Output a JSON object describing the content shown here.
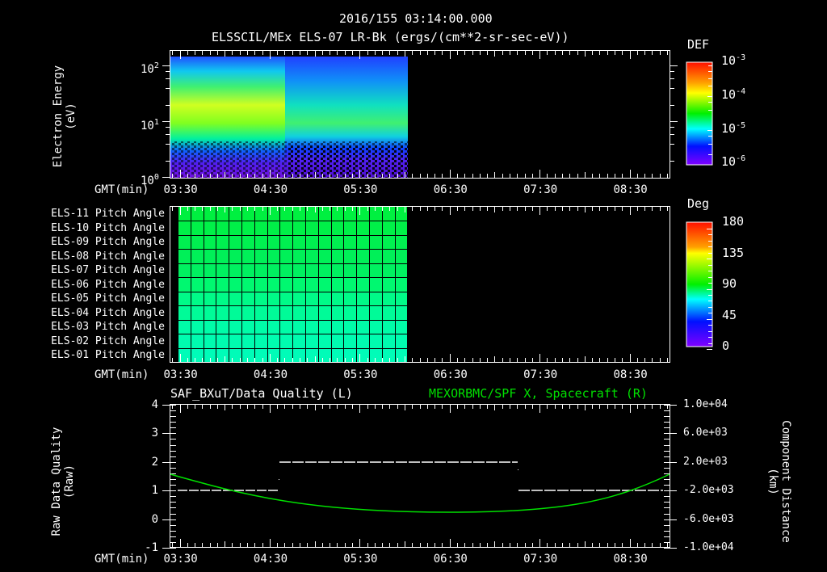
{
  "header": {
    "timestamp": "2016/155 03:14:00.000",
    "subtitle": "ELSSCIL/MEx ELS-07 LR-Bk  (ergs/(cm**2-sr-sec-eV))"
  },
  "time_axis": {
    "label": "GMT(min)",
    "ticks": [
      "03:30",
      "04:30",
      "05:30",
      "06:30",
      "07:30",
      "08:30"
    ]
  },
  "panel1": {
    "ylabel_line1": "Electron Energy",
    "ylabel_line2": "(eV)",
    "yticks": [
      {
        "base": "10",
        "exp": "2"
      },
      {
        "base": "10",
        "exp": "1"
      },
      {
        "base": "10",
        "exp": "0"
      }
    ],
    "colorbar": {
      "title": "DEF",
      "ticks": [
        {
          "base": "10",
          "exp": "-3"
        },
        {
          "base": "10",
          "exp": "-4"
        },
        {
          "base": "10",
          "exp": "-5"
        },
        {
          "base": "10",
          "exp": "-6"
        }
      ]
    }
  },
  "panel2": {
    "rows": [
      "ELS-11 Pitch Angle",
      "ELS-10 Pitch Angle",
      "ELS-09 Pitch Angle",
      "ELS-08 Pitch Angle",
      "ELS-07 Pitch Angle",
      "ELS-06 Pitch Angle",
      "ELS-05 Pitch Angle",
      "ELS-04 Pitch Angle",
      "ELS-03 Pitch Angle",
      "ELS-02 Pitch Angle",
      "ELS-01 Pitch Angle"
    ],
    "colorbar": {
      "title": "Deg",
      "ticks": [
        "180",
        "135",
        "90",
        "45",
        "0"
      ]
    }
  },
  "panel3": {
    "left_title": "SAF_BXuT/Data Quality (L)",
    "right_title": "MEXORBMC/SPF X, Spacecraft (R)",
    "ylabel_left_line1": "Raw Data Quality",
    "ylabel_left_line2": "(Raw)",
    "ylabel_right_line1": "Component Distance",
    "ylabel_right_line2": "(km)",
    "yticks_left": [
      "4",
      "3",
      "2",
      "1",
      "0",
      "-1"
    ],
    "yticks_right": [
      "1.0e+04",
      "6.0e+03",
      "2.0e+03",
      "-2.0e+03",
      "-6.0e+03",
      "-1.0e+04"
    ]
  },
  "colors": {
    "background": "#000000",
    "axis": "#ffffff",
    "spf_line": "#00e000",
    "quality_line": "#ffffff"
  },
  "chart_data": [
    {
      "type": "heatmap",
      "title": "ELSSCIL/MEx ELS-07 LR-Bk (ergs/(cm**2-sr-sec-eV))",
      "xlabel": "GMT(min)",
      "ylabel": "Electron Energy (eV)",
      "x_ticks": [
        "03:30",
        "04:30",
        "05:30",
        "06:30",
        "07:30",
        "08:30"
      ],
      "y_scale": "log",
      "ylim": [
        1,
        150
      ],
      "data_extent_x": [
        "03:14",
        "~06:00"
      ],
      "colorbar": {
        "label": "DEF",
        "scale": "log",
        "range": [
          1e-06,
          0.001
        ]
      },
      "description": "Strong band ~20-60 eV (green-yellow, ~1e-4) from 03:14 to ~04:50, weaker patchy band ~15-60 eV (cyan-green) 04:50-06:00; low energies <5 eV near 1e-6 with gaps"
    },
    {
      "type": "heatmap",
      "title": "Pitch Angle",
      "rows": [
        "ELS-11",
        "ELS-10",
        "ELS-09",
        "ELS-08",
        "ELS-07",
        "ELS-06",
        "ELS-05",
        "ELS-04",
        "ELS-03",
        "ELS-02",
        "ELS-01"
      ],
      "row_values_deg": [
        105,
        104,
        102,
        100,
        98,
        95,
        92,
        88,
        85,
        83,
        80
      ],
      "data_extent_x": [
        "03:14",
        "~06:00"
      ],
      "colorbar": {
        "label": "Deg",
        "range": [
          0,
          180
        ],
        "ticks": [
          0,
          45,
          90,
          135,
          180
        ]
      }
    },
    {
      "type": "line",
      "title_left": "SAF_BXuT/Data Quality (L)",
      "title_right": "MEXORBMC/SPF X, Spacecraft (R)",
      "xlabel": "GMT(min)",
      "ylabel_left": "Raw Data Quality (Raw)",
      "ylabel_right": "Component Distance (km)",
      "ylim_left": [
        -1,
        4
      ],
      "ylim_right": [
        -10000,
        10000
      ],
      "series": [
        {
          "name": "Data Quality",
          "axis": "left",
          "x": [
            "03:20",
            "04:40",
            "04:42",
            "07:30",
            "07:31",
            "09:00"
          ],
          "values": [
            1,
            1,
            2,
            2,
            1,
            1
          ]
        },
        {
          "name": "SPF X",
          "axis": "right",
          "x": [
            "03:14",
            "04:00",
            "04:44",
            "05:30",
            "06:15",
            "07:00",
            "07:30",
            "08:00",
            "08:30",
            "09:00"
          ],
          "values": [
            2400,
            -800,
            -3500,
            -5400,
            -6000,
            -5500,
            -4500,
            -3000,
            -800,
            2400
          ]
        }
      ]
    }
  ]
}
